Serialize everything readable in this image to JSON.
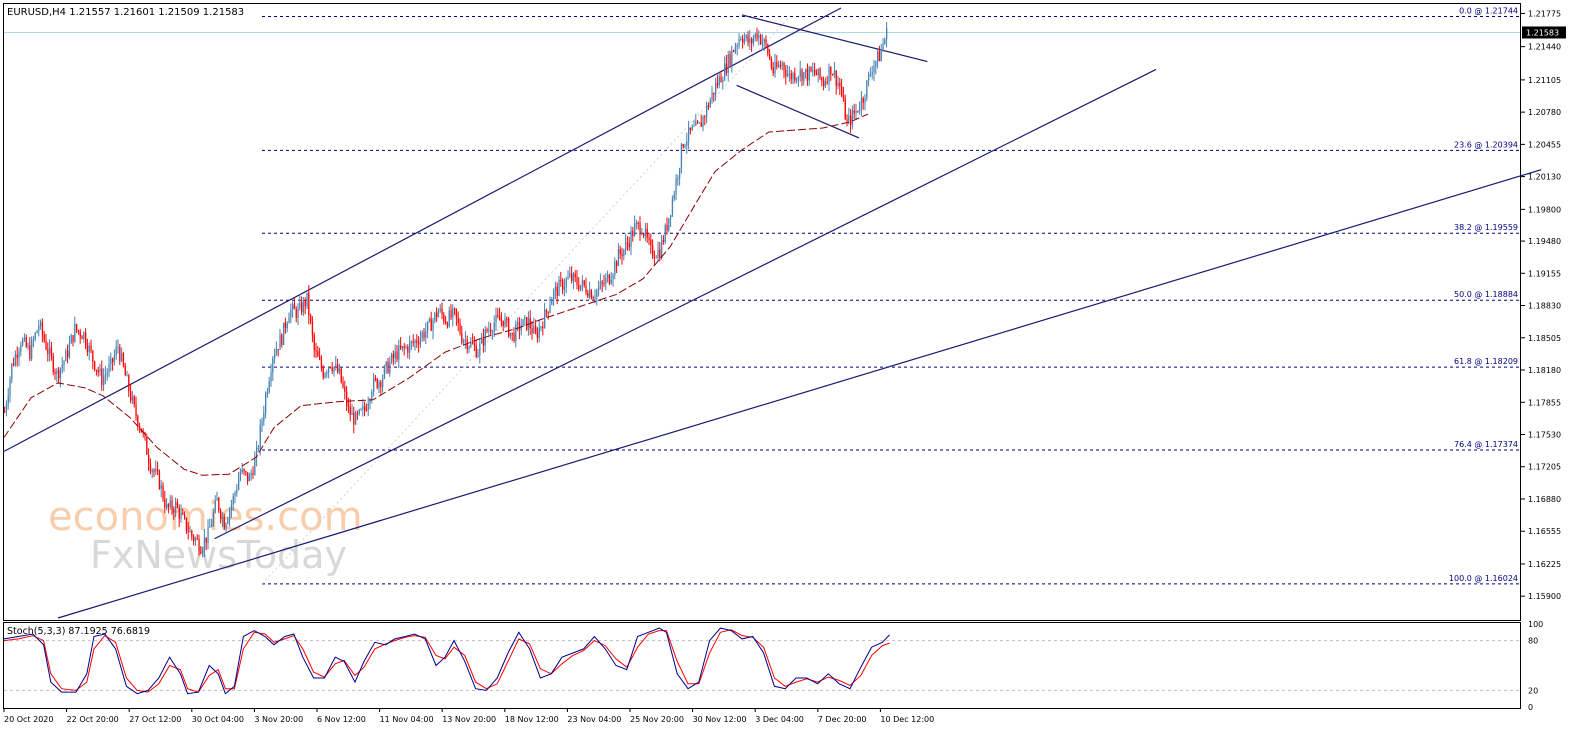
{
  "header": {
    "symbol": "EURUSD,H4",
    "ohlc": "1.21557 1.21601 1.21509 1.21583"
  },
  "watermark": {
    "line1": "economies.com",
    "line2": "FxNewsToday"
  },
  "colors": {
    "bull": "#4682b4",
    "bear": "#ff0000",
    "ma": "#8b0000",
    "trend": "#191970",
    "fib": "#000080",
    "grid": "#c0c0c0",
    "stoch_main": "#00008b",
    "stoch_signal": "#ff0000",
    "current_price": "#add8e6"
  },
  "stoch": {
    "label": "Stoch(5,3,3) 87.1925 76.6819",
    "levels": [
      100,
      80,
      20,
      0
    ]
  },
  "chart_data": {
    "type": "candlestick",
    "timeframe": "H4",
    "current_price": 1.21583,
    "ylim": [
      1.1568,
      1.2186
    ],
    "price_ticks": [
      1.21775,
      1.2144,
      1.21105,
      1.2078,
      1.20455,
      1.2013,
      1.198,
      1.1948,
      1.19155,
      1.1883,
      1.18505,
      1.1818,
      1.17855,
      1.1753,
      1.17205,
      1.1688,
      1.16555,
      1.16225,
      1.159
    ],
    "x_labels": [
      "20 Oct 2020",
      "22 Oct 20:00",
      "27 Oct 12:00",
      "30 Oct 04:00",
      "3 Nov 20:00",
      "6 Nov 12:00",
      "11 Nov 04:00",
      "13 Nov 20:00",
      "18 Nov 12:00",
      "23 Nov 04:00",
      "25 Nov 20:00",
      "30 Nov 12:00",
      "3 Dec 04:00",
      "7 Dec 20:00",
      "10 Dec 12:00"
    ],
    "fibonacci": [
      {
        "label": "0.0 @ 1.21744",
        "price": 1.21744
      },
      {
        "label": "23.6 @ 1.20394",
        "price": 1.20394
      },
      {
        "label": "38.2 @ 1.19559",
        "price": 1.19559
      },
      {
        "label": "50.0 @ 1.18884",
        "price": 1.18884
      },
      {
        "label": "61.8 @ 1.18209",
        "price": 1.18209
      },
      {
        "label": "76.4 @ 1.17374",
        "price": 1.17374
      },
      {
        "label": "100.0 @ 1.16024",
        "price": 1.16024
      }
    ],
    "close_path": [
      [
        0,
        1.1776
      ],
      [
        4,
        1.1822
      ],
      [
        9,
        1.1848
      ],
      [
        14,
        1.1836
      ],
      [
        19,
        1.1864
      ],
      [
        24,
        1.1838
      ],
      [
        29,
        1.1814
      ],
      [
        34,
        1.1831
      ],
      [
        39,
        1.1859
      ],
      [
        44,
        1.1854
      ],
      [
        49,
        1.1829
      ],
      [
        54,
        1.1809
      ],
      [
        59,
        1.1822
      ],
      [
        63,
        1.1842
      ],
      [
        67,
        1.1812
      ],
      [
        72,
        1.1778
      ],
      [
        76,
        1.1758
      ],
      [
        81,
        1.1723
      ],
      [
        86,
        1.1705
      ],
      [
        90,
        1.1678
      ],
      [
        95,
        1.1681
      ],
      [
        100,
        1.1663
      ],
      [
        104,
        1.1651
      ],
      [
        109,
        1.1641
      ],
      [
        113,
        1.1652
      ],
      [
        118,
        1.1686
      ],
      [
        122,
        1.1664
      ],
      [
        127,
        1.1688
      ],
      [
        131,
        1.1715
      ],
      [
        136,
        1.1708
      ],
      [
        140,
        1.1732
      ],
      [
        145,
        1.1792
      ],
      [
        149,
        1.1834
      ],
      [
        154,
        1.1851
      ],
      [
        158,
        1.1878
      ],
      [
        163,
        1.1876
      ],
      [
        168,
        1.1889
      ],
      [
        172,
        1.1837
      ],
      [
        177,
        1.1816
      ],
      [
        181,
        1.1826
      ],
      [
        186,
        1.1813
      ],
      [
        191,
        1.1777
      ],
      [
        195,
        1.1767
      ],
      [
        200,
        1.1778
      ],
      [
        204,
        1.1802
      ],
      [
        209,
        1.1809
      ],
      [
        213,
        1.1822
      ],
      [
        218,
        1.1835
      ],
      [
        222,
        1.1839
      ],
      [
        227,
        1.1845
      ],
      [
        231,
        1.1852
      ],
      [
        236,
        1.1862
      ],
      [
        241,
        1.1878
      ],
      [
        245,
        1.1869
      ],
      [
        250,
        1.1873
      ],
      [
        254,
        1.1852
      ],
      [
        259,
        1.1844
      ],
      [
        263,
        1.1837
      ],
      [
        268,
        1.1858
      ],
      [
        272,
        1.1866
      ],
      [
        277,
        1.1869
      ],
      [
        282,
        1.1852
      ],
      [
        286,
        1.1862
      ],
      [
        291,
        1.1866
      ],
      [
        295,
        1.1852
      ],
      [
        300,
        1.1872
      ],
      [
        304,
        1.1893
      ],
      [
        309,
        1.1903
      ],
      [
        314,
        1.1911
      ],
      [
        318,
        1.1906
      ],
      [
        323,
        1.1901
      ],
      [
        327,
        1.1895
      ],
      [
        332,
        1.1903
      ],
      [
        336,
        1.1912
      ],
      [
        341,
        1.1933
      ],
      [
        345,
        1.1942
      ],
      [
        350,
        1.1961
      ],
      [
        354,
        1.1963
      ],
      [
        359,
        1.1937
      ],
      [
        364,
        1.1938
      ],
      [
        368,
        1.1964
      ],
      [
        373,
        1.2008
      ],
      [
        377,
        1.2048
      ],
      [
        382,
        1.2059
      ],
      [
        386,
        1.2063
      ],
      [
        391,
        1.2086
      ],
      [
        395,
        1.2104
      ],
      [
        400,
        1.2121
      ],
      [
        405,
        1.2142
      ],
      [
        409,
        1.2156
      ],
      [
        414,
        1.2147
      ],
      [
        418,
        1.2158
      ],
      [
        423,
        1.2144
      ],
      [
        427,
        1.2119
      ],
      [
        432,
        1.2127
      ],
      [
        436,
        1.2114
      ],
      [
        441,
        1.2118
      ],
      [
        446,
        1.2116
      ],
      [
        450,
        1.2118
      ],
      [
        455,
        1.2108
      ],
      [
        459,
        1.2123
      ],
      [
        464,
        1.2104
      ],
      [
        468,
        1.2066
      ],
      [
        473,
        1.2079
      ],
      [
        477,
        1.2093
      ],
      [
        482,
        1.2124
      ],
      [
        486,
        1.2135
      ],
      [
        490,
        1.2158
      ]
    ],
    "moving_average": [
      [
        0,
        1.175
      ],
      [
        15,
        1.179
      ],
      [
        30,
        1.1805
      ],
      [
        45,
        1.18
      ],
      [
        55,
        1.1792
      ],
      [
        70,
        1.177
      ],
      [
        85,
        1.174
      ],
      [
        100,
        1.1718
      ],
      [
        110,
        1.1712
      ],
      [
        125,
        1.1713
      ],
      [
        140,
        1.173
      ],
      [
        150,
        1.176
      ],
      [
        165,
        1.1782
      ],
      [
        185,
        1.1786
      ],
      [
        205,
        1.1788
      ],
      [
        225,
        1.181
      ],
      [
        245,
        1.1836
      ],
      [
        265,
        1.185
      ],
      [
        285,
        1.186
      ],
      [
        300,
        1.187
      ],
      [
        320,
        1.1882
      ],
      [
        340,
        1.1894
      ],
      [
        355,
        1.191
      ],
      [
        370,
        1.1942
      ],
      [
        385,
        1.1988
      ],
      [
        395,
        1.2018
      ],
      [
        410,
        1.204
      ],
      [
        425,
        1.2058
      ],
      [
        440,
        1.206
      ],
      [
        455,
        1.2062
      ],
      [
        470,
        1.2068
      ],
      [
        480,
        1.2076
      ]
    ],
    "trendlines": [
      {
        "from": [
          0,
          1.1736
        ],
        "to": [
          465,
          1.2183
        ]
      },
      {
        "from": [
          117,
          1.1648
        ],
        "to": [
          640,
          1.2121
        ]
      },
      {
        "from": [
          30,
          1.1568
        ],
        "to": [
          854,
          1.202
        ]
      },
      {
        "from": [
          410,
          1.2176
        ],
        "to": [
          513,
          1.2129
        ]
      },
      {
        "from": [
          407,
          1.2105
        ],
        "to": [
          475,
          1.2052
        ]
      }
    ],
    "stochastic_main": [
      [
        0,
        82
      ],
      [
        8,
        85
      ],
      [
        16,
        88
      ],
      [
        22,
        75
      ],
      [
        26,
        30
      ],
      [
        32,
        18
      ],
      [
        40,
        18
      ],
      [
        46,
        40
      ],
      [
        50,
        85
      ],
      [
        56,
        88
      ],
      [
        62,
        70
      ],
      [
        68,
        25
      ],
      [
        74,
        16
      ],
      [
        80,
        20
      ],
      [
        86,
        35
      ],
      [
        92,
        60
      ],
      [
        98,
        40
      ],
      [
        102,
        16
      ],
      [
        108,
        18
      ],
      [
        114,
        50
      ],
      [
        119,
        40
      ],
      [
        123,
        16
      ],
      [
        128,
        25
      ],
      [
        133,
        85
      ],
      [
        139,
        92
      ],
      [
        145,
        85
      ],
      [
        150,
        75
      ],
      [
        156,
        85
      ],
      [
        161,
        88
      ],
      [
        166,
        60
      ],
      [
        172,
        35
      ],
      [
        178,
        35
      ],
      [
        184,
        60
      ],
      [
        189,
        55
      ],
      [
        195,
        30
      ],
      [
        200,
        55
      ],
      [
        206,
        78
      ],
      [
        212,
        75
      ],
      [
        217,
        82
      ],
      [
        223,
        85
      ],
      [
        228,
        88
      ],
      [
        234,
        82
      ],
      [
        240,
        50
      ],
      [
        245,
        60
      ],
      [
        250,
        80
      ],
      [
        256,
        55
      ],
      [
        262,
        22
      ],
      [
        268,
        20
      ],
      [
        274,
        35
      ],
      [
        280,
        65
      ],
      [
        286,
        90
      ],
      [
        292,
        70
      ],
      [
        298,
        35
      ],
      [
        304,
        40
      ],
      [
        310,
        60
      ],
      [
        316,
        65
      ],
      [
        322,
        70
      ],
      [
        328,
        85
      ],
      [
        334,
        70
      ],
      [
        340,
        50
      ],
      [
        346,
        45
      ],
      [
        352,
        85
      ],
      [
        358,
        90
      ],
      [
        364,
        95
      ],
      [
        368,
        90
      ],
      [
        374,
        40
      ],
      [
        380,
        22
      ],
      [
        386,
        30
      ],
      [
        392,
        80
      ],
      [
        398,
        95
      ],
      [
        404,
        92
      ],
      [
        410,
        82
      ],
      [
        416,
        85
      ],
      [
        422,
        65
      ],
      [
        428,
        25
      ],
      [
        434,
        22
      ],
      [
        440,
        35
      ],
      [
        446,
        35
      ],
      [
        452,
        28
      ],
      [
        458,
        40
      ],
      [
        464,
        28
      ],
      [
        470,
        22
      ],
      [
        476,
        48
      ],
      [
        482,
        72
      ],
      [
        488,
        78
      ],
      [
        492,
        87
      ]
    ],
    "stochastic_signal": [
      [
        0,
        80
      ],
      [
        8,
        82
      ],
      [
        16,
        86
      ],
      [
        22,
        80
      ],
      [
        26,
        40
      ],
      [
        32,
        22
      ],
      [
        40,
        20
      ],
      [
        46,
        30
      ],
      [
        50,
        70
      ],
      [
        56,
        86
      ],
      [
        62,
        78
      ],
      [
        68,
        35
      ],
      [
        74,
        20
      ],
      [
        80,
        18
      ],
      [
        86,
        28
      ],
      [
        92,
        50
      ],
      [
        98,
        45
      ],
      [
        102,
        22
      ],
      [
        108,
        18
      ],
      [
        114,
        38
      ],
      [
        119,
        45
      ],
      [
        123,
        22
      ],
      [
        128,
        22
      ],
      [
        133,
        70
      ],
      [
        139,
        90
      ],
      [
        145,
        88
      ],
      [
        150,
        78
      ],
      [
        156,
        82
      ],
      [
        161,
        86
      ],
      [
        166,
        70
      ],
      [
        172,
        42
      ],
      [
        178,
        36
      ],
      [
        184,
        52
      ],
      [
        189,
        56
      ],
      [
        195,
        38
      ],
      [
        200,
        48
      ],
      [
        206,
        70
      ],
      [
        212,
        76
      ],
      [
        217,
        80
      ],
      [
        223,
        84
      ],
      [
        228,
        86
      ],
      [
        234,
        84
      ],
      [
        240,
        62
      ],
      [
        245,
        58
      ],
      [
        250,
        72
      ],
      [
        256,
        62
      ],
      [
        262,
        30
      ],
      [
        268,
        22
      ],
      [
        274,
        28
      ],
      [
        280,
        55
      ],
      [
        286,
        82
      ],
      [
        292,
        76
      ],
      [
        298,
        46
      ],
      [
        304,
        40
      ],
      [
        310,
        52
      ],
      [
        316,
        62
      ],
      [
        322,
        68
      ],
      [
        328,
        80
      ],
      [
        334,
        74
      ],
      [
        340,
        58
      ],
      [
        346,
        48
      ],
      [
        352,
        72
      ],
      [
        358,
        88
      ],
      [
        364,
        92
      ],
      [
        368,
        92
      ],
      [
        374,
        55
      ],
      [
        380,
        28
      ],
      [
        386,
        28
      ],
      [
        392,
        65
      ],
      [
        398,
        90
      ],
      [
        404,
        93
      ],
      [
        410,
        86
      ],
      [
        416,
        84
      ],
      [
        422,
        72
      ],
      [
        428,
        35
      ],
      [
        434,
        25
      ],
      [
        440,
        30
      ],
      [
        446,
        34
      ],
      [
        452,
        30
      ],
      [
        458,
        36
      ],
      [
        464,
        32
      ],
      [
        470,
        26
      ],
      [
        476,
        38
      ],
      [
        482,
        62
      ],
      [
        488,
        74
      ],
      [
        492,
        77
      ]
    ]
  }
}
